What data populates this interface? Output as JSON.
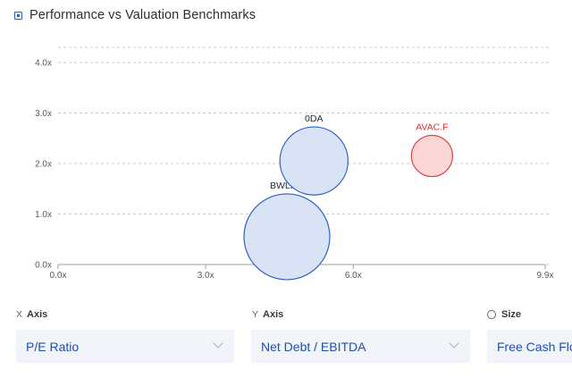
{
  "header": {
    "title": "Performance vs Valuation Benchmarks",
    "icon": "chart-icon"
  },
  "chart_data": {
    "type": "scatter",
    "title": "Performance vs Valuation Benchmarks",
    "xlabel": "",
    "ylabel": "",
    "xlim": [
      0,
      9.9
    ],
    "ylim": [
      0,
      4.3
    ],
    "x_ticks": [
      "0.0x",
      "3.0x",
      "6.0x",
      "9.9x"
    ],
    "x_tick_values": [
      0,
      3,
      6,
      9.9
    ],
    "y_ticks": [
      "0.0x",
      "1.0x",
      "2.0x",
      "3.0x",
      "4.0x"
    ],
    "y_tick_values": [
      0,
      1,
      2,
      3,
      4
    ],
    "grid": true,
    "points": [
      {
        "name": "0DA",
        "x": 5.2,
        "y": 2.05,
        "size": 0.63,
        "highlight": false
      },
      {
        "name": "BWLPG",
        "x": 4.65,
        "y": 0.55,
        "size": 1.0,
        "highlight": false
      },
      {
        "name": "AVAC.F",
        "x": 7.6,
        "y": 2.15,
        "size": 0.23,
        "highlight": true
      }
    ],
    "colors": {
      "default_fill": "#d9e3f5",
      "default_stroke": "#2b62c4",
      "default_label": "#1f2937",
      "highlight_fill": "#fbd6d6",
      "highlight_stroke": "#e34343",
      "highlight_label": "#e02d2d",
      "grid": "#c7cbd1"
    }
  },
  "controls": {
    "x_axis": {
      "letter": "X",
      "label": "Axis",
      "value": "P/E Ratio"
    },
    "y_axis": {
      "letter": "Y",
      "label": "Axis",
      "value": "Net Debt / EBITDA"
    },
    "size": {
      "label": "Size",
      "value": "Free Cash Flo"
    }
  }
}
